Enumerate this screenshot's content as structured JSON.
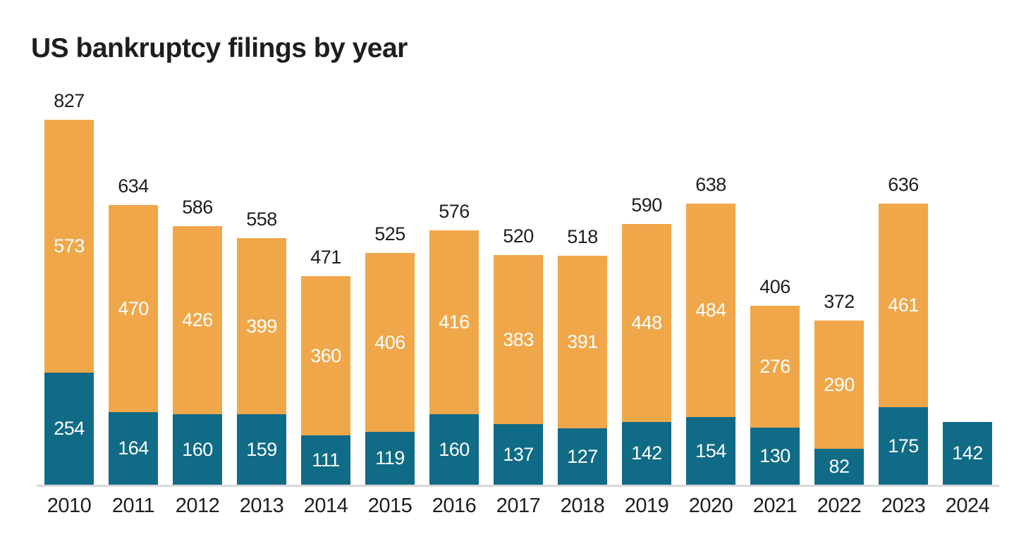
{
  "title": "US bankruptcy filings by year",
  "colors": {
    "teal_segment": "#106b86",
    "orange_segment": "#f0a74a",
    "axis_line": "#d9d9d9",
    "dark_text": "#1e1e1c",
    "light_text": "#ffffff",
    "background": "#ffffff"
  },
  "chart_data": {
    "type": "bar",
    "stacked": true,
    "orientation": "vertical",
    "title": "US bankruptcy filings by year",
    "categories": [
      "2010",
      "2011",
      "2012",
      "2013",
      "2014",
      "2015",
      "2016",
      "2017",
      "2018",
      "2019",
      "2020",
      "2021",
      "2022",
      "2023",
      "2024"
    ],
    "series": [
      {
        "name": "bottom-segment-teal",
        "color": "#106b86",
        "values": [
          254,
          164,
          160,
          159,
          111,
          119,
          160,
          137,
          127,
          142,
          154,
          130,
          82,
          175,
          142
        ]
      },
      {
        "name": "top-segment-orange",
        "color": "#f0a74a",
        "values": [
          573,
          470,
          426,
          399,
          360,
          406,
          416,
          383,
          391,
          448,
          484,
          276,
          290,
          461,
          0
        ]
      }
    ],
    "totals": [
      827,
      634,
      586,
      558,
      471,
      525,
      576,
      520,
      518,
      590,
      638,
      406,
      372,
      636,
      142
    ],
    "total_labels": [
      "827",
      "634",
      "586",
      "558",
      "471",
      "525",
      "576",
      "520",
      "518",
      "590",
      "638",
      "406",
      "372",
      "636",
      ""
    ],
    "segment_labels_color": "#ffffff",
    "total_labels_color": "#1e1e1c",
    "legend_position": "none",
    "y_axis": "hidden",
    "x_axis_line_visible": true,
    "grid": false,
    "ylim": [
      0,
      880
    ]
  }
}
